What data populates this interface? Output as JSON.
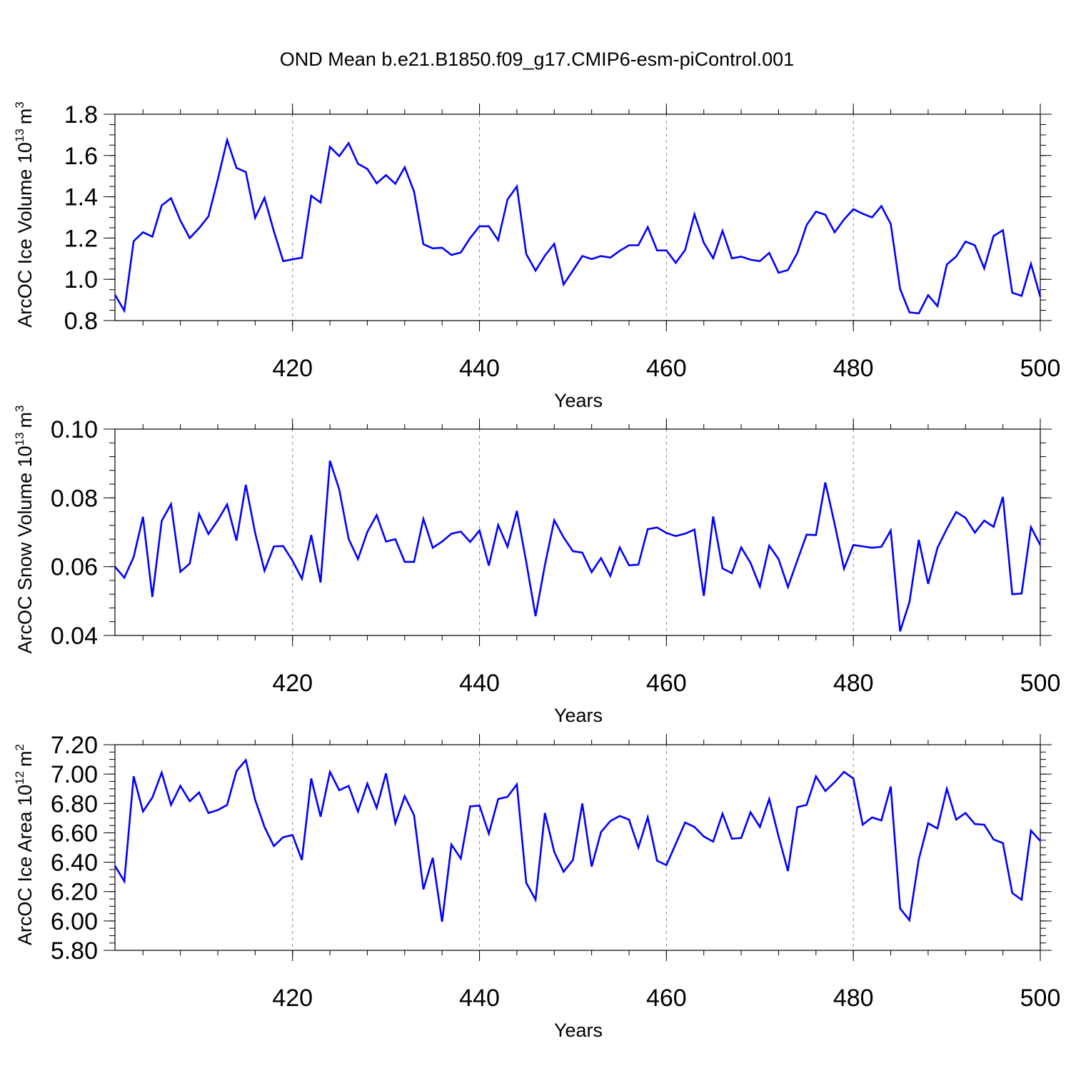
{
  "title": "OND Mean b.e21.B1850.f09_g17.CMIP6-esm-piControl.001",
  "chart_data": [
    {
      "type": "line",
      "ylabel": "ArcOC Ice Volume 10",
      "ylabel_exp": "13",
      "ylabel_unit": "m",
      "ylabel_unit_exp": "3",
      "xlabel": "Years",
      "xlim": [
        401,
        500
      ],
      "ylim": [
        0.8,
        1.8
      ],
      "xticks": [
        420,
        440,
        460,
        480,
        500
      ],
      "xtick_labels": [
        "420",
        "440",
        "460",
        "480",
        "500"
      ],
      "yticks": [
        0.8,
        1.0,
        1.2,
        1.4,
        1.6,
        1.8
      ],
      "ytick_labels": [
        "0.8",
        "1.0",
        "1.2",
        "1.4",
        "1.6",
        "1.8"
      ],
      "yminor": 0.05,
      "series": [
        {
          "name": "Ice Volume",
          "color": "#0000ff",
          "values": [
            0.925,
            0.848,
            1.185,
            1.228,
            1.207,
            1.358,
            1.393,
            1.285,
            1.2,
            1.248,
            1.305,
            1.483,
            1.675,
            1.54,
            1.52,
            1.298,
            1.395,
            1.233,
            1.088,
            1.097,
            1.105,
            1.405,
            1.372,
            1.642,
            1.597,
            1.66,
            1.56,
            1.535,
            1.465,
            1.505,
            1.463,
            1.543,
            1.425,
            1.17,
            1.15,
            1.153,
            1.118,
            1.13,
            1.2,
            1.257,
            1.257,
            1.19,
            1.387,
            1.45,
            1.123,
            1.042,
            1.115,
            1.172,
            0.975,
            1.043,
            1.113,
            1.098,
            1.113,
            1.105,
            1.138,
            1.165,
            1.165,
            1.253,
            1.14,
            1.14,
            1.08,
            1.142,
            1.315,
            1.177,
            1.102,
            1.235,
            1.102,
            1.11,
            1.095,
            1.088,
            1.128,
            1.032,
            1.045,
            1.127,
            1.263,
            1.328,
            1.313,
            1.228,
            1.29,
            1.34,
            1.318,
            1.3,
            1.355,
            1.268,
            0.953,
            0.84,
            0.835,
            0.923,
            0.87,
            1.072,
            1.11,
            1.183,
            1.165,
            1.053,
            1.21,
            1.238,
            0.935,
            0.92,
            1.075,
            0.915
          ]
        }
      ]
    },
    {
      "type": "line",
      "ylabel": "ArcOC Snow Volume 10",
      "ylabel_exp": "13",
      "ylabel_unit": "m",
      "ylabel_unit_exp": "3",
      "xlabel": "Years",
      "xlim": [
        401,
        500
      ],
      "ylim": [
        0.04,
        0.1
      ],
      "xticks": [
        420,
        440,
        460,
        480,
        500
      ],
      "xtick_labels": [
        "420",
        "440",
        "460",
        "480",
        "500"
      ],
      "yticks": [
        0.04,
        0.06,
        0.08,
        0.1
      ],
      "ytick_labels": [
        "0.04",
        "0.06",
        "0.08",
        "0.10"
      ],
      "yminor": 0.004,
      "series": [
        {
          "name": "Snow Volume",
          "color": "#0000ff",
          "values": [
            0.06,
            0.0568,
            0.0628,
            0.0745,
            0.0512,
            0.0733,
            0.0782,
            0.0585,
            0.0609,
            0.0753,
            0.0695,
            0.0735,
            0.0781,
            0.0676,
            0.0838,
            0.0698,
            0.0588,
            0.0659,
            0.066,
            0.0617,
            0.0565,
            0.0692,
            0.0554,
            0.0908,
            0.0824,
            0.0681,
            0.0622,
            0.0701,
            0.075,
            0.0673,
            0.068,
            0.0614,
            0.0614,
            0.0739,
            0.0655,
            0.0673,
            0.0696,
            0.0702,
            0.0672,
            0.0705,
            0.0603,
            0.0721,
            0.0658,
            0.0762,
            0.0614,
            0.0456,
            0.0605,
            0.0735,
            0.0685,
            0.0645,
            0.0641,
            0.0584,
            0.0625,
            0.0573,
            0.0656,
            0.0604,
            0.0606,
            0.0709,
            0.0714,
            0.0698,
            0.0689,
            0.0696,
            0.0708,
            0.0515,
            0.0746,
            0.0595,
            0.0581,
            0.0656,
            0.0611,
            0.0542,
            0.0661,
            0.0622,
            0.0541,
            0.0618,
            0.0693,
            0.0692,
            0.0845,
            0.0724,
            0.0594,
            0.0663,
            0.0659,
            0.0655,
            0.0658,
            0.0705,
            0.0412,
            0.0497,
            0.0678,
            0.055,
            0.0655,
            0.071,
            0.0759,
            0.0742,
            0.0699,
            0.0734,
            0.0716,
            0.0803,
            0.052,
            0.0522,
            0.0715,
            0.0663
          ]
        }
      ]
    },
    {
      "type": "line",
      "ylabel": "ArcOC Ice Area 10",
      "ylabel_exp": "12",
      "ylabel_unit": "m",
      "ylabel_unit_exp": "2",
      "xlabel": "Years",
      "xlim": [
        401,
        500
      ],
      "ylim": [
        5.8,
        7.2
      ],
      "xticks": [
        420,
        440,
        460,
        480,
        500
      ],
      "xtick_labels": [
        "420",
        "440",
        "460",
        "480",
        "500"
      ],
      "yticks": [
        5.8,
        6.0,
        6.2,
        6.4,
        6.6,
        6.8,
        7.0,
        7.2
      ],
      "ytick_labels": [
        "5.80",
        "6.00",
        "6.20",
        "6.40",
        "6.60",
        "6.80",
        "7.00",
        "7.20"
      ],
      "yminor": 0.05,
      "series": [
        {
          "name": "Ice Area",
          "color": "#0000ff",
          "values": [
            6.375,
            6.27,
            6.985,
            6.745,
            6.84,
            7.01,
            6.79,
            6.92,
            6.815,
            6.875,
            6.735,
            6.755,
            6.79,
            7.02,
            7.095,
            6.825,
            6.64,
            6.51,
            6.57,
            6.585,
            6.415,
            6.97,
            6.71,
            7.015,
            6.89,
            6.92,
            6.745,
            6.935,
            6.77,
            7.005,
            6.665,
            6.85,
            6.72,
            6.215,
            6.43,
            5.995,
            6.52,
            6.425,
            6.78,
            6.785,
            6.595,
            6.83,
            6.845,
            6.93,
            6.26,
            6.145,
            6.735,
            6.47,
            6.335,
            6.415,
            6.8,
            6.37,
            6.605,
            6.68,
            6.715,
            6.69,
            6.5,
            6.705,
            6.41,
            6.38,
            6.525,
            6.67,
            6.64,
            6.575,
            6.54,
            6.73,
            6.56,
            6.565,
            6.74,
            6.64,
            6.83,
            6.575,
            6.34,
            6.775,
            6.79,
            6.985,
            6.885,
            6.945,
            7.015,
            6.97,
            6.655,
            6.705,
            6.685,
            6.915,
            6.085,
            6.005,
            6.42,
            6.665,
            6.63,
            6.9,
            6.69,
            6.735,
            6.66,
            6.655,
            6.555,
            6.53,
            6.19,
            6.145,
            6.615,
            6.545
          ]
        }
      ]
    }
  ]
}
